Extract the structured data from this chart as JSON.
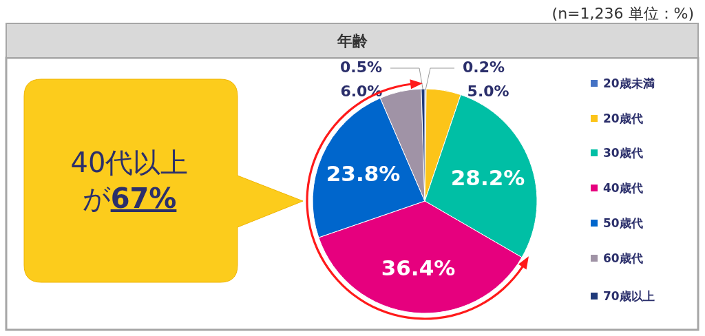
{
  "chart_data": {
    "type": "pie",
    "title": "年齢",
    "categories": [
      "20歳未満",
      "20歳代",
      "30歳代",
      "40歳代",
      "50歳代",
      "60歳代",
      "70歳以上"
    ],
    "values": [
      0.2,
      5.0,
      28.2,
      36.4,
      23.8,
      6.0,
      0.5
    ],
    "colors": [
      "#4472c4",
      "#fcc419",
      "#00bfa5",
      "#e6007e",
      "#0066cc",
      "#a093a6",
      "#1f3a7a"
    ],
    "value_labels": [
      "0.2%",
      "5.0%",
      "28.2%",
      "36.4%",
      "23.8%",
      "6.0%",
      "0.5%"
    ],
    "legend": "right",
    "annotations": [
      "(n=1,236 単位：%)",
      "40代以上",
      "が67%"
    ]
  }
}
